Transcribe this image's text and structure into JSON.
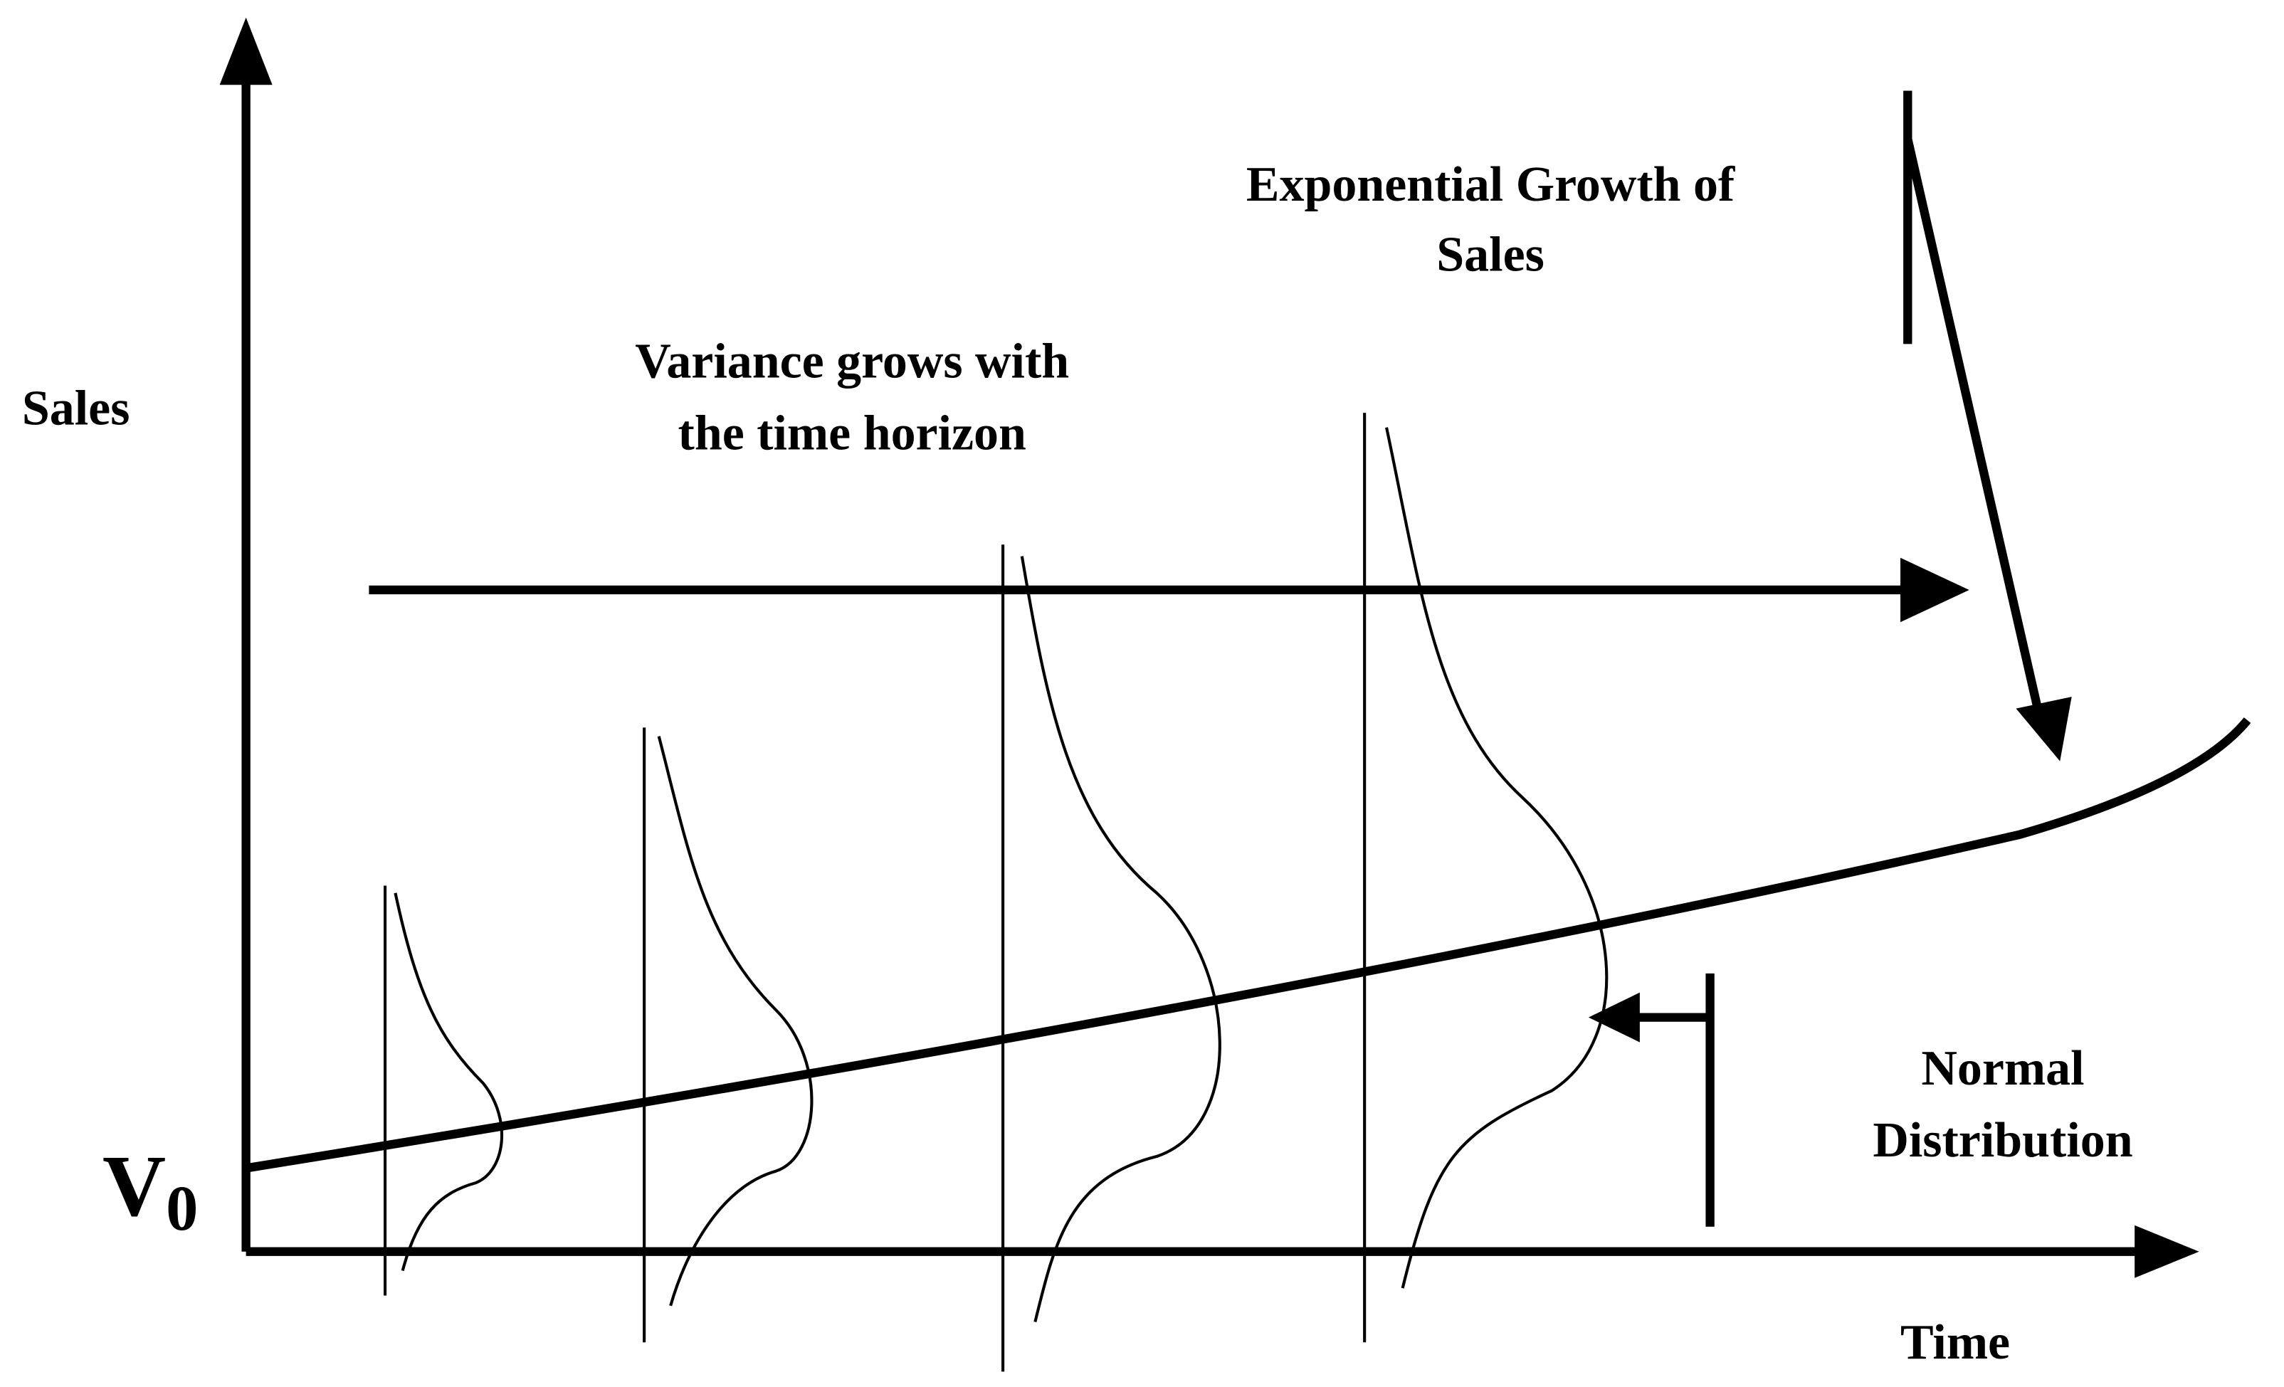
{
  "axes": {
    "y_label": "Sales",
    "x_label": "Time"
  },
  "origin_label": {
    "symbol": "V",
    "subscript": "0"
  },
  "annotations": {
    "variance": [
      "Variance grows with",
      "the time horizon"
    ],
    "growth": [
      "Exponential Growth of",
      "Sales"
    ],
    "distribution": [
      "Normal",
      "Distribution"
    ]
  }
}
